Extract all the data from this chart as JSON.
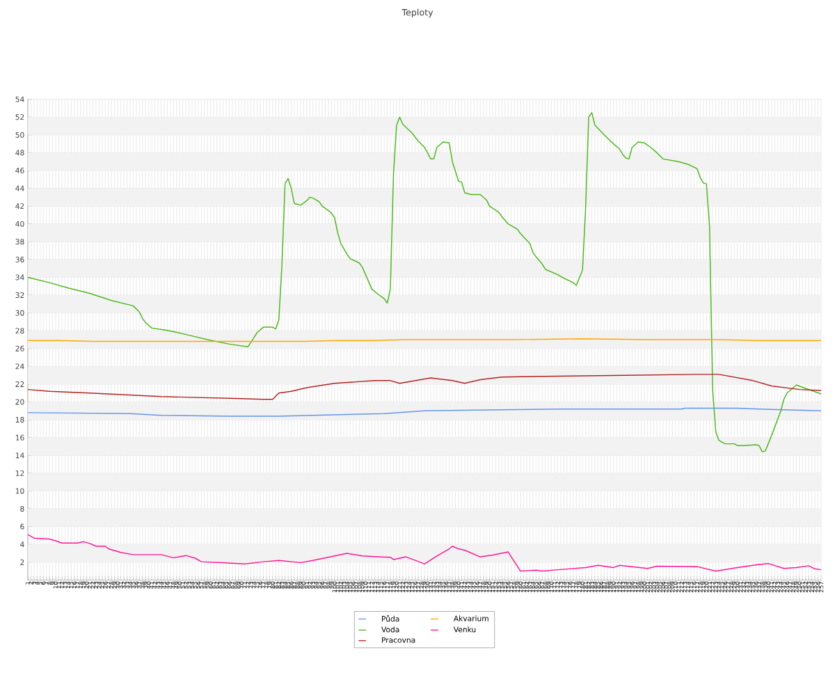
{
  "chart_data": {
    "type": "line",
    "title": "Teploty",
    "xlim": [
      1,
      257
    ],
    "ylim": [
      0,
      54
    ],
    "xticks": [
      1,
      2,
      3,
      4,
      5,
      6,
      7,
      8,
      9,
      10,
      11,
      12,
      13,
      14,
      15,
      16,
      17,
      18,
      19,
      20,
      21,
      22,
      23,
      24,
      25,
      26,
      27,
      28,
      29,
      30,
      31,
      32,
      33,
      34,
      35,
      36,
      37,
      38,
      39,
      40,
      41,
      42,
      43,
      44,
      45,
      46,
      47,
      48,
      49,
      50,
      51,
      52,
      53,
      54,
      55,
      56,
      57,
      58,
      59,
      60,
      61,
      62,
      63,
      64,
      65,
      66,
      67,
      68,
      69,
      70,
      71,
      72,
      73,
      74,
      75,
      76,
      77,
      78,
      79,
      80,
      81,
      82,
      83,
      84,
      85,
      86,
      87,
      88,
      89,
      90,
      91,
      92,
      93,
      94,
      95,
      96,
      97,
      98,
      99,
      100,
      101,
      102,
      103,
      104,
      105,
      106,
      107,
      108,
      109,
      110,
      111,
      112,
      113,
      114,
      115,
      116,
      117,
      118,
      119,
      120,
      121,
      122,
      123,
      124,
      125,
      126,
      127,
      128,
      129,
      130,
      131,
      132,
      133,
      134,
      135,
      136,
      137,
      138,
      139,
      140,
      141,
      142,
      143,
      144,
      145,
      146,
      147,
      148,
      149,
      150,
      151,
      152,
      153,
      154,
      155,
      156,
      157,
      158,
      159,
      160,
      161,
      162,
      163,
      164,
      165,
      166,
      167,
      168,
      169,
      170,
      171,
      172,
      173,
      174,
      175,
      176,
      177,
      178,
      179,
      180,
      181,
      182,
      183,
      184,
      185,
      186,
      187,
      188,
      189,
      190,
      191,
      192,
      193,
      194,
      195,
      196,
      197,
      198,
      199,
      200,
      201,
      202,
      203,
      204,
      205,
      206,
      207,
      208,
      209,
      210,
      211,
      212,
      213,
      214,
      215,
      216,
      217,
      218,
      219,
      220,
      221,
      222,
      223,
      224,
      225,
      226,
      227,
      228,
      229,
      230,
      231,
      232,
      233,
      234,
      235,
      236,
      237,
      238,
      239,
      240,
      241,
      242,
      243,
      244,
      245,
      246,
      247,
      248,
      249,
      250,
      251,
      252,
      253,
      254,
      255,
      256,
      257
    ],
    "yticks": [
      2,
      4,
      6,
      8,
      10,
      12,
      14,
      16,
      18,
      20,
      22,
      24,
      26,
      28,
      30,
      32,
      34,
      36,
      38,
      40,
      42,
      44,
      46,
      48,
      50,
      52,
      54
    ],
    "grid": true,
    "legend": "bottom",
    "bands": [
      {
        "axis": "y",
        "from": 2,
        "to": 4,
        "color": "#f2f2f2"
      },
      {
        "axis": "y",
        "from": 6,
        "to": 8,
        "color": "#f2f2f2"
      },
      {
        "axis": "y",
        "from": 10,
        "to": 12,
        "color": "#f2f2f2"
      },
      {
        "axis": "y",
        "from": 14,
        "to": 16,
        "color": "#f2f2f2"
      },
      {
        "axis": "y",
        "from": 18,
        "to": 20,
        "color": "#f2f2f2"
      },
      {
        "axis": "y",
        "from": 22,
        "to": 24,
        "color": "#f2f2f2"
      },
      {
        "axis": "y",
        "from": 26,
        "to": 28,
        "color": "#f2f2f2"
      },
      {
        "axis": "y",
        "from": 30,
        "to": 32,
        "color": "#f2f2f2"
      },
      {
        "axis": "y",
        "from": 34,
        "to": 36,
        "color": "#f2f2f2"
      },
      {
        "axis": "y",
        "from": 38,
        "to": 40,
        "color": "#f2f2f2"
      },
      {
        "axis": "y",
        "from": 42,
        "to": 44,
        "color": "#f2f2f2"
      },
      {
        "axis": "y",
        "from": 46,
        "to": 48,
        "color": "#f2f2f2"
      },
      {
        "axis": "y",
        "from": 50,
        "to": 52,
        "color": "#f2f2f2"
      }
    ],
    "series": [
      {
        "name": "Půda",
        "color": "#6495ed",
        "x": [
          1,
          34,
          44,
          66,
          82,
          104,
          116,
          129,
          149,
          172,
          212,
          213,
          230,
          237,
          257
        ],
        "values": [
          18.8,
          18.7,
          18.5,
          18.4,
          18.4,
          18.6,
          18.7,
          19.0,
          19.1,
          19.2,
          19.2,
          19.3,
          19.3,
          19.2,
          19.0
        ]
      },
      {
        "name": "Voda",
        "color": "#4cb81a",
        "x": [
          1,
          8,
          14,
          21,
          28,
          35,
          37,
          38,
          39,
          41,
          45,
          48,
          53,
          59,
          66,
          72,
          73,
          75,
          77,
          80,
          81,
          82,
          83,
          84,
          85,
          86,
          87,
          89,
          91,
          92,
          93,
          95,
          96,
          98,
          99,
          100,
          101,
          102,
          104,
          105,
          108,
          109,
          111,
          112,
          114,
          116,
          117,
          118,
          119,
          120,
          121,
          122,
          125,
          127,
          129,
          130,
          131,
          132,
          133,
          135,
          137,
          138,
          140,
          141,
          142,
          144,
          147,
          149,
          150,
          153,
          154,
          156,
          159,
          160,
          163,
          164,
          165,
          167,
          168,
          172,
          174,
          177,
          178,
          180,
          181,
          182,
          183,
          184,
          187,
          190,
          192,
          193,
          194,
          195,
          196,
          198,
          200,
          202,
          204,
          206,
          211,
          214,
          217,
          218,
          219,
          220,
          221,
          222,
          223,
          224,
          226,
          229,
          230,
          232,
          236,
          237,
          238,
          239,
          241,
          244,
          245,
          246,
          247,
          249,
          253,
          257
        ],
        "values": [
          34.0,
          33.4,
          32.8,
          32.2,
          31.4,
          30.8,
          30.1,
          29.4,
          28.9,
          28.3,
          28.1,
          27.9,
          27.5,
          27.0,
          26.5,
          26.2,
          26.7,
          27.8,
          28.4,
          28.4,
          28.2,
          29.2,
          35.4,
          44.5,
          45.1,
          44.0,
          42.3,
          42.1,
          42.6,
          43.0,
          42.9,
          42.5,
          42.0,
          41.5,
          41.2,
          40.7,
          39.0,
          37.8,
          36.6,
          36.1,
          35.6,
          35.1,
          33.5,
          32.7,
          32.1,
          31.6,
          31.1,
          32.7,
          45.6,
          51.1,
          52.0,
          51.2,
          50.2,
          49.3,
          48.6,
          48.0,
          47.3,
          47.3,
          48.6,
          49.2,
          49.1,
          47.0,
          44.8,
          44.7,
          43.5,
          43.3,
          43.3,
          42.7,
          42.0,
          41.3,
          40.8,
          40.0,
          39.4,
          38.9,
          37.8,
          36.8,
          36.3,
          35.5,
          34.9,
          34.3,
          33.9,
          33.4,
          33.1,
          34.8,
          41.7,
          52.0,
          52.5,
          51.1,
          50.0,
          49.0,
          48.4,
          47.8,
          47.4,
          47.3,
          48.6,
          49.2,
          49.1,
          48.6,
          48.0,
          47.3,
          47.0,
          46.7,
          46.2,
          45.2,
          44.6,
          44.5,
          39.7,
          21.4,
          16.7,
          15.7,
          15.3,
          15.3,
          15.1,
          15.1,
          15.2,
          15.1,
          14.4,
          14.5,
          16.2,
          19.0,
          20.3,
          21.0,
          21.3,
          21.9,
          21.4,
          20.9
        ]
      },
      {
        "name": "Pracovna",
        "color": "#b22222",
        "x": [
          1,
          8,
          21,
          44,
          68,
          77,
          80,
          82,
          86,
          91,
          100,
          113,
          118,
          121,
          131,
          138,
          142,
          147,
          154,
          172,
          194,
          217,
          224,
          235,
          241,
          250,
          257
        ],
        "values": [
          21.4,
          21.2,
          21.0,
          20.6,
          20.4,
          20.3,
          20.3,
          21.0,
          21.2,
          21.6,
          22.1,
          22.4,
          22.4,
          22.1,
          22.7,
          22.4,
          22.1,
          22.5,
          22.8,
          22.9,
          23.0,
          23.1,
          23.1,
          22.4,
          21.8,
          21.4,
          21.3
        ]
      },
      {
        "name": "Akvarium",
        "color": "#ffa500",
        "x": [
          1,
          11,
          22,
          39,
          67,
          81,
          90,
          101,
          112,
          123,
          146,
          157,
          180,
          202,
          224,
          236,
          247,
          257
        ],
        "values": [
          26.9,
          26.9,
          26.8,
          26.8,
          26.8,
          26.8,
          26.8,
          26.9,
          26.9,
          27.0,
          27.0,
          27.0,
          27.1,
          27.0,
          27.0,
          26.9,
          26.9,
          26.9
        ]
      },
      {
        "name": "Venku",
        "color": "#ff1493",
        "x": [
          1,
          3,
          8,
          10,
          12,
          17,
          19,
          21,
          23,
          26,
          27,
          31,
          35,
          44,
          48,
          52,
          55,
          57,
          64,
          71,
          77,
          82,
          89,
          93,
          104,
          109,
          114,
          118,
          119,
          123,
          128,
          129,
          133,
          137,
          138,
          140,
          142,
          147,
          151,
          156,
          160,
          165,
          167,
          172,
          181,
          185,
          190,
          192,
          201,
          204,
          217,
          223,
          230,
          237,
          240,
          245,
          249,
          253,
          255,
          257
        ],
        "values": [
          5.1,
          4.7,
          4.6,
          4.4,
          4.15,
          4.15,
          4.3,
          4.1,
          3.8,
          3.8,
          3.5,
          3.1,
          2.85,
          2.85,
          2.5,
          2.75,
          2.45,
          2.05,
          1.95,
          1.8,
          2.05,
          2.2,
          1.95,
          2.2,
          3.0,
          2.7,
          2.6,
          2.55,
          2.3,
          2.6,
          1.95,
          1.8,
          2.7,
          3.5,
          3.8,
          3.5,
          3.35,
          2.6,
          2.8,
          3.15,
          1.0,
          1.1,
          1.0,
          1.15,
          1.4,
          1.65,
          1.4,
          1.65,
          1.3,
          1.55,
          1.5,
          1.0,
          1.4,
          1.75,
          1.85,
          1.3,
          1.4,
          1.6,
          1.25,
          1.15
        ]
      }
    ]
  }
}
